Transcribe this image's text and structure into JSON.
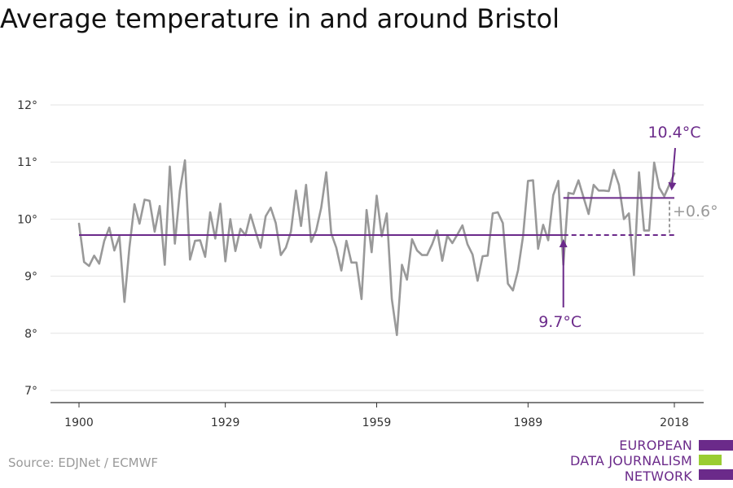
{
  "title": "Average temperature in and around Bristol",
  "source": "Source: EDJNet / ECMWF",
  "logo": {
    "lines": [
      "EUROPEAN",
      "DATA JOURNALISM",
      "NETWORK"
    ]
  },
  "colors": {
    "series": "#999999",
    "accent": "#6b2a8a",
    "grid": "#e3e3e3",
    "axis": "#333333",
    "logo_green": "#9acd32"
  },
  "chart_data": {
    "type": "line",
    "x_ticks": [
      1900,
      1929,
      1959,
      1989,
      2018
    ],
    "y_ticks": [
      7,
      8,
      9,
      10,
      11,
      12
    ],
    "y_tick_labels": [
      "7°",
      "8°",
      "9°",
      "10°",
      "11°",
      "12°"
    ],
    "xlim": [
      1898,
      2025
    ],
    "ylim": [
      6.75,
      12.15
    ],
    "grid": true,
    "series": [
      {
        "x": [
          1900,
          1901,
          1902,
          1903,
          1904,
          1905,
          1906,
          1907,
          1908,
          1909,
          1910,
          1911,
          1912,
          1913,
          1914,
          1915,
          1916,
          1917,
          1918,
          1919,
          1920,
          1921,
          1922,
          1923,
          1924,
          1925,
          1926,
          1927,
          1928,
          1929,
          1930,
          1931,
          1932,
          1933,
          1934,
          1935,
          1936,
          1937,
          1938,
          1939,
          1940,
          1941,
          1942,
          1943,
          1944,
          1945,
          1946,
          1947,
          1948,
          1949,
          1950,
          1951,
          1952,
          1953,
          1954,
          1955,
          1956,
          1957,
          1958,
          1959,
          1960,
          1961,
          1962,
          1963,
          1964,
          1965,
          1966,
          1967,
          1968,
          1969,
          1970,
          1971,
          1972,
          1973,
          1974,
          1975,
          1976,
          1977,
          1978,
          1979,
          1980,
          1981,
          1982,
          1983,
          1984,
          1985,
          1986,
          1987,
          1988,
          1989,
          1990,
          1991,
          1992,
          1993,
          1994,
          1995,
          1996,
          1997,
          1998,
          1999,
          2000,
          2001,
          2002,
          2003,
          2004,
          2005,
          2006,
          2007,
          2008,
          2009,
          2010,
          2011,
          2012,
          2013,
          2014,
          2015,
          2016,
          2017,
          2018
        ],
        "values": [
          9.92,
          9.25,
          9.18,
          9.36,
          9.22,
          9.62,
          9.85,
          9.45,
          9.7,
          8.55,
          9.5,
          10.26,
          9.92,
          10.34,
          10.32,
          9.78,
          10.23,
          9.2,
          10.92,
          9.57,
          10.5,
          11.03,
          9.29,
          9.62,
          9.63,
          9.34,
          10.12,
          9.66,
          10.27,
          9.26,
          10.0,
          9.44,
          9.83,
          9.72,
          10.08,
          9.78,
          9.5,
          10.05,
          10.2,
          9.93,
          9.37,
          9.5,
          9.78,
          10.5,
          9.88,
          10.6,
          9.6,
          9.8,
          10.2,
          10.82,
          9.75,
          9.5,
          9.1,
          9.62,
          9.24,
          9.24,
          8.6,
          10.16,
          9.42,
          10.41,
          9.7,
          10.1,
          8.6,
          7.97,
          9.2,
          8.94,
          9.65,
          9.45,
          9.37,
          9.37,
          9.56,
          9.8,
          9.27,
          9.71,
          9.58,
          9.73,
          9.89,
          9.56,
          9.38,
          8.92,
          9.35,
          9.36,
          10.1,
          10.12,
          9.93,
          8.87,
          8.75,
          9.1,
          9.7,
          10.67,
          10.68,
          9.48,
          9.9,
          9.63,
          10.42,
          10.67,
          9.2,
          10.46,
          10.44,
          10.68,
          10.38,
          10.09,
          10.6,
          10.5,
          10.5,
          10.49,
          10.86,
          10.6,
          10.0,
          10.1,
          9.02,
          10.82,
          9.8,
          9.8,
          10.99,
          10.55,
          10.4,
          10.6,
          10.8
        ]
      }
    ],
    "annotations": [
      {
        "text": "10.4°C",
        "year_from": 1996,
        "year_to": 2018,
        "value": 10.37
      },
      {
        "text": "9.7°C",
        "year_from": 1900,
        "year_to": 1996,
        "dashed_to": 2018,
        "value": 9.72
      },
      {
        "text": "+0.6°",
        "year": 2018
      }
    ]
  }
}
